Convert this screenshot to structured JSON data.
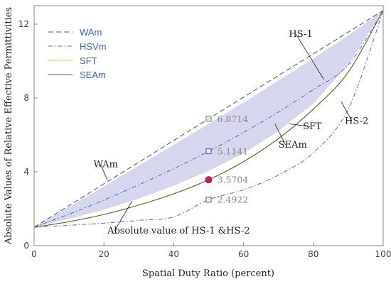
{
  "chart_data": {
    "type": "line",
    "xlabel": "Spatial Duty Ratio (percent)",
    "ylabel": "Absolute Values of Relative Effective Permittivities",
    "xlim": [
      0,
      100
    ],
    "ylim": [
      0,
      13
    ],
    "xticks": [
      0,
      20,
      40,
      60,
      80,
      100
    ],
    "yticks": [
      0,
      4,
      8,
      12
    ],
    "grid": false,
    "legend_position": "top-left",
    "x": [
      0,
      10,
      20,
      30,
      40,
      50,
      60,
      70,
      80,
      90,
      100
    ],
    "series": [
      {
        "name": "WAm",
        "style": "dashed",
        "color": "#555555",
        "values": [
          1.0,
          2.17,
          3.35,
          4.52,
          5.7,
          6.87,
          8.04,
          9.22,
          10.39,
          11.57,
          12.74
        ]
      },
      {
        "name": "HSVm",
        "style": "dashdot",
        "color": "#4a6fc8",
        "values": [
          1.0,
          1.71,
          2.47,
          3.3,
          4.17,
          5.11,
          6.13,
          7.24,
          8.46,
          9.79,
          12.74
        ]
      },
      {
        "name": "SFT",
        "style": "dotted",
        "color": "#d8d800",
        "values": [
          1.0,
          1.3,
          1.69,
          2.2,
          2.81,
          3.57,
          4.55,
          5.8,
          7.4,
          9.4,
          12.74
        ]
      },
      {
        "name": "SEAm",
        "style": "solid",
        "color": "#555555",
        "values": [
          1.0,
          1.3,
          1.69,
          2.2,
          2.81,
          3.57,
          4.55,
          5.8,
          7.4,
          9.4,
          12.74
        ]
      }
    ],
    "hs2": [
      1.0,
      1.1,
      1.22,
      1.37,
      1.56,
      2.49,
      3.03,
      3.83,
      5.04,
      7.4,
      12.74
    ],
    "band": {
      "upper": [
        1.0,
        2.1,
        3.21,
        4.33,
        5.46,
        6.6,
        7.76,
        8.94,
        10.14,
        11.39,
        12.74
      ],
      "lower": [
        1.0,
        1.45,
        1.95,
        2.55,
        3.25,
        4.05,
        5.0,
        6.2,
        7.7,
        9.8,
        12.74
      ],
      "color": "#c8c8e6"
    },
    "markers": [
      {
        "x": 50,
        "y": 6.8714,
        "label": "6.8714",
        "shape": "square",
        "color": "#4caf50"
      },
      {
        "x": 50,
        "y": 5.1141,
        "label": "5.1141",
        "shape": "square",
        "color": "#4a6fc8"
      },
      {
        "x": 50,
        "y": 3.5704,
        "label": "3.5704",
        "shape": "circle",
        "color": "#c2185b"
      },
      {
        "x": 50,
        "y": 2.4922,
        "label": "2.4922",
        "shape": "square",
        "color": "#4a6fc8"
      }
    ],
    "annotations": [
      {
        "text": "WAm",
        "x": 17,
        "y": 4.25,
        "line_to": [
          21,
          3.55
        ]
      },
      {
        "text": "HS-1",
        "x": 73,
        "y": 11.3,
        "line_to": [
          83,
          9.0
        ]
      },
      {
        "text": "HS-2",
        "x": 89,
        "y": 6.6,
        "line_to": [
          88,
          7.8
        ]
      },
      {
        "text": "SFT",
        "x": 77,
        "y": 6.3,
        "line_to": [
          73,
          6.6
        ]
      },
      {
        "text": "SEAm",
        "x": 70,
        "y": 5.3,
        "line_to": [
          69,
          6.6
        ]
      },
      {
        "text": "Absolute value of HS-1 &HS-2",
        "x": 21,
        "y": 0.65,
        "line_to": [
          28,
          2.4
        ]
      }
    ]
  }
}
